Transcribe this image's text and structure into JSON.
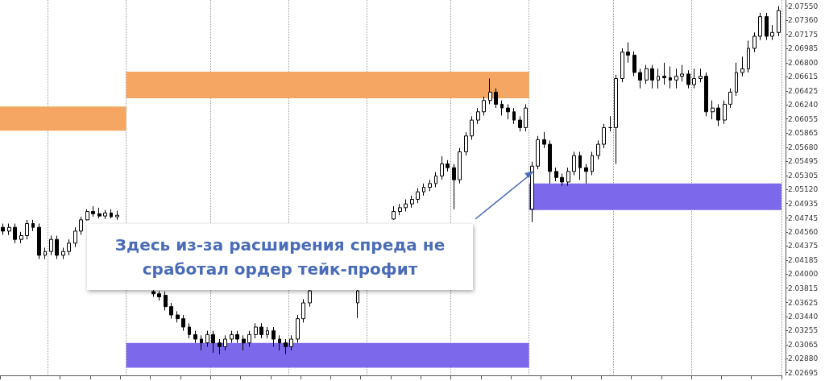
{
  "chart_data": {
    "type": "candlestick",
    "color": "#000000",
    "annotations": [
      "Здесь из-за расширения спреда не сработал ордер тейк-профит"
    ],
    "ylim": [
      2.0266,
      2.0763
    ],
    "yticks": [
      {
        "value": 2.0755,
        "label": "2.07550"
      },
      {
        "value": 2.0736,
        "label": "2.07360"
      },
      {
        "value": 2.07175,
        "label": "2.07175"
      },
      {
        "value": 2.06985,
        "label": "2.06985"
      },
      {
        "value": 2.068,
        "label": "2.06800"
      },
      {
        "value": 2.06615,
        "label": "2.06615"
      },
      {
        "value": 2.06425,
        "label": "2.06425"
      },
      {
        "value": 2.0624,
        "label": "2.06240"
      },
      {
        "value": 2.06055,
        "label": "2.06055"
      },
      {
        "value": 2.05865,
        "label": "2.05865"
      },
      {
        "value": 2.0568,
        "label": "2.05680"
      },
      {
        "value": 2.05495,
        "label": "2.05495"
      },
      {
        "value": 2.05305,
        "label": "2.05305"
      },
      {
        "value": 2.0512,
        "label": "2.05120"
      },
      {
        "value": 2.04935,
        "label": "2.04935"
      },
      {
        "value": 2.04745,
        "label": "2.04745"
      },
      {
        "value": 2.0456,
        "label": "2.04560"
      },
      {
        "value": 2.04375,
        "label": "2.04375"
      },
      {
        "value": 2.04185,
        "label": "2.04185"
      },
      {
        "value": 2.04,
        "label": "2.04000"
      },
      {
        "value": 2.03815,
        "label": "2.03815"
      },
      {
        "value": 2.03625,
        "label": "2.03625"
      },
      {
        "value": 2.0344,
        "label": "2.03440"
      },
      {
        "value": 2.03255,
        "label": "2.03255"
      },
      {
        "value": 2.03065,
        "label": "2.03065"
      },
      {
        "value": 2.0288,
        "label": "2.02880"
      },
      {
        "value": 2.02695,
        "label": "2.02695"
      }
    ],
    "bands": [
      {
        "axis": "y",
        "from": 2.059,
        "to": 2.0622,
        "color": "#f4a662"
      },
      {
        "axis": "y",
        "from": 2.0633,
        "to": 2.0668,
        "color": "#f4a662"
      },
      {
        "axis": "y",
        "from": 2.0276,
        "to": 2.0309,
        "color": "#7b68ea"
      },
      {
        "axis": "y",
        "from": 2.0485,
        "to": 2.052,
        "color": "#7b68ea"
      }
    ],
    "categories": [
      null,
      null,
      null,
      null,
      null,
      null,
      null,
      null,
      null,
      null,
      null,
      null,
      null,
      null,
      null,
      null,
      null,
      null,
      null,
      null,
      null,
      null,
      null,
      null,
      null,
      null,
      null,
      null,
      null,
      null,
      null,
      null,
      null,
      null,
      null,
      null,
      null,
      null,
      null,
      null,
      null,
      null,
      null,
      null,
      null,
      null,
      null,
      null,
      null,
      null,
      null,
      null,
      null,
      null,
      null,
      null,
      null,
      null,
      null,
      null,
      null,
      null,
      null,
      null,
      null,
      null,
      null,
      null,
      null,
      null,
      null,
      null,
      null,
      null,
      null,
      null,
      null,
      null,
      null,
      null,
      null,
      null,
      null,
      null,
      null,
      null,
      null,
      null,
      null,
      null,
      null,
      null,
      null,
      null,
      null,
      null,
      null,
      null,
      null,
      null,
      null,
      null,
      null,
      null,
      null,
      null,
      null,
      null,
      null,
      null,
      null,
      null,
      null,
      null,
      null,
      null,
      null,
      null,
      null,
      null,
      null,
      null,
      null,
      null,
      null,
      null,
      null,
      null,
      null,
      null
    ],
    "ohlc": [
      [
        2.0462,
        2.0467,
        2.0452,
        2.0457
      ],
      [
        2.0457,
        2.0467,
        2.0452,
        2.0462
      ],
      [
        2.0462,
        2.0467,
        2.0441,
        2.0446
      ],
      [
        2.0446,
        2.0456,
        2.0441,
        2.0451
      ],
      [
        2.0451,
        2.0472,
        2.0446,
        2.0467
      ],
      [
        2.0467,
        2.0472,
        2.0457,
        2.0462
      ],
      [
        2.0462,
        2.0467,
        2.042,
        2.0425
      ],
      [
        2.0425,
        2.0435,
        2.042,
        2.043
      ],
      [
        2.043,
        2.0451,
        2.0425,
        2.0446
      ],
      [
        2.0446,
        2.0451,
        2.042,
        2.0425
      ],
      [
        2.0425,
        2.0435,
        2.042,
        2.043
      ],
      [
        2.043,
        2.0446,
        2.0425,
        2.0441
      ],
      [
        2.0441,
        2.0462,
        2.0436,
        2.0457
      ],
      [
        2.0457,
        2.0476,
        2.0452,
        2.0472
      ],
      [
        2.0472,
        2.0486,
        2.0471,
        2.0483
      ],
      [
        2.0483,
        2.049,
        2.0476,
        2.048
      ],
      [
        2.048,
        2.0488,
        2.0474,
        2.0477
      ],
      [
        2.0477,
        2.0485,
        2.0473,
        2.0481
      ],
      [
        2.0481,
        2.0486,
        2.0474,
        2.0476
      ],
      [
        2.0476,
        2.0484,
        2.0472,
        2.0478
      ],
      null,
      null,
      null,
      null,
      null,
      [
        2.0377,
        2.0379,
        2.037,
        2.0374
      ],
      [
        2.0374,
        2.0378,
        2.0365,
        2.037
      ],
      [
        2.0372,
        2.0377,
        2.0352,
        2.0357
      ],
      [
        2.0357,
        2.0362,
        2.0341,
        2.0346
      ],
      [
        2.0346,
        2.0351,
        2.0336,
        2.0341
      ],
      [
        2.0341,
        2.0346,
        2.0325,
        2.033
      ],
      [
        2.033,
        2.0335,
        2.0315,
        2.032
      ],
      [
        2.032,
        2.0325,
        2.0309,
        2.0314
      ],
      [
        2.0314,
        2.0319,
        2.0299,
        2.0309
      ],
      [
        2.0309,
        2.0325,
        2.0304,
        2.032
      ],
      [
        2.032,
        2.0325,
        2.0296,
        2.0309
      ],
      [
        2.0309,
        2.0314,
        2.0294,
        2.0304
      ],
      [
        2.0304,
        2.0319,
        2.0299,
        2.0314
      ],
      [
        2.0314,
        2.0325,
        2.0309,
        2.032
      ],
      [
        2.032,
        2.0325,
        2.0309,
        2.0314
      ],
      [
        2.0314,
        2.0319,
        2.0299,
        2.0309
      ],
      [
        2.0309,
        2.0325,
        2.0304,
        2.032
      ],
      [
        2.032,
        2.0335,
        2.0315,
        2.033
      ],
      [
        2.033,
        2.0335,
        2.0315,
        2.032
      ],
      [
        2.032,
        2.033,
        2.0315,
        2.0325
      ],
      [
        2.0325,
        2.033,
        2.0304,
        2.0314
      ],
      [
        2.0314,
        2.0319,
        2.0299,
        2.0309
      ],
      [
        2.0309,
        2.0314,
        2.0294,
        2.0304
      ],
      [
        2.0304,
        2.0319,
        2.0299,
        2.0314
      ],
      [
        2.0314,
        2.0346,
        2.0309,
        2.0341
      ],
      [
        2.0341,
        2.0367,
        2.0336,
        2.0362
      ],
      [
        2.0362,
        2.0381,
        2.0357,
        2.0378
      ],
      null,
      null,
      null,
      null,
      null,
      null,
      null,
      [
        2.0362,
        2.0381,
        2.0342,
        2.0378
      ],
      null,
      null,
      null,
      null,
      null,
      [
        2.0473,
        2.049,
        2.0472,
        2.0483
      ],
      [
        2.0483,
        2.0493,
        2.0478,
        2.0488
      ],
      [
        2.0488,
        2.0499,
        2.0483,
        2.0493
      ],
      [
        2.0493,
        2.0504,
        2.0488,
        2.0499
      ],
      [
        2.0499,
        2.0514,
        2.0494,
        2.0509
      ],
      [
        2.0509,
        2.052,
        2.0504,
        2.0515
      ],
      [
        2.0515,
        2.0525,
        2.051,
        2.052
      ],
      [
        2.052,
        2.0535,
        2.0515,
        2.053
      ],
      [
        2.053,
        2.0556,
        2.0525,
        2.0546
      ],
      [
        2.0546,
        2.0551,
        2.0536,
        2.0541
      ],
      [
        2.0541,
        2.0546,
        2.0486,
        2.0525
      ],
      [
        2.0525,
        2.0567,
        2.052,
        2.0562
      ],
      [
        2.0562,
        2.0588,
        2.0557,
        2.0583
      ],
      [
        2.0583,
        2.0609,
        2.0578,
        2.0604
      ],
      [
        2.0604,
        2.062,
        2.0599,
        2.0615
      ],
      [
        2.0615,
        2.0635,
        2.061,
        2.063
      ],
      [
        2.063,
        2.0659,
        2.0625,
        2.0641
      ],
      [
        2.0641,
        2.0646,
        2.062,
        2.0625
      ],
      [
        2.0625,
        2.063,
        2.061,
        2.062
      ],
      [
        2.062,
        2.0625,
        2.0605,
        2.0615
      ],
      [
        2.0615,
        2.062,
        2.0599,
        2.0604
      ],
      [
        2.0604,
        2.0609,
        2.0589,
        2.0594
      ],
      [
        2.0594,
        2.0625,
        2.0589,
        2.062
      ],
      [
        2.0486,
        2.0549,
        2.0469,
        2.0543
      ],
      [
        2.0543,
        2.0583,
        2.0539,
        2.0578
      ],
      [
        2.0578,
        2.0588,
        2.0567,
        2.0572
      ],
      [
        2.0572,
        2.0577,
        2.052,
        2.0536
      ],
      [
        2.0536,
        2.0541,
        2.0523,
        2.0528
      ],
      [
        2.0528,
        2.0533,
        2.0517,
        2.0522
      ],
      [
        2.0522,
        2.0541,
        2.0517,
        2.0536
      ],
      [
        2.0536,
        2.0562,
        2.0531,
        2.0557
      ],
      [
        2.0557,
        2.0562,
        2.0525,
        2.0541
      ],
      [
        2.0541,
        2.0546,
        2.052,
        2.0536
      ],
      [
        2.0536,
        2.0562,
        2.0531,
        2.0557
      ],
      [
        2.0557,
        2.0577,
        2.0552,
        2.0572
      ],
      [
        2.0572,
        2.0599,
        2.0567,
        2.0594
      ],
      [
        2.0594,
        2.0609,
        2.0589,
        2.0594
      ],
      [
        2.0594,
        2.0664,
        2.0546,
        2.0659
      ],
      [
        2.0659,
        2.0699,
        2.0654,
        2.0694
      ],
      [
        2.0694,
        2.0707,
        2.068,
        2.069
      ],
      [
        2.069,
        2.0695,
        2.0662,
        2.0667
      ],
      [
        2.0667,
        2.0672,
        2.0646,
        2.0657
      ],
      [
        2.0657,
        2.0677,
        2.0652,
        2.0672
      ],
      [
        2.0672,
        2.0677,
        2.0646,
        2.0657
      ],
      [
        2.0657,
        2.0672,
        2.0646,
        2.0662
      ],
      [
        2.0662,
        2.068,
        2.0651,
        2.066
      ],
      [
        2.066,
        2.0675,
        2.0646,
        2.0657
      ],
      [
        2.0657,
        2.0672,
        2.0646,
        2.0662
      ],
      [
        2.0662,
        2.0677,
        2.0655,
        2.0665
      ],
      [
        2.0665,
        2.067,
        2.0646,
        2.0651
      ],
      [
        2.0651,
        2.0672,
        2.0646,
        2.0659
      ],
      [
        2.0659,
        2.0672,
        2.0654,
        2.0662
      ],
      [
        2.0662,
        2.0667,
        2.0609,
        2.0615
      ],
      [
        2.0615,
        2.063,
        2.0605,
        2.062
      ],
      [
        2.062,
        2.0625,
        2.0596,
        2.0604
      ],
      [
        2.0604,
        2.063,
        2.0599,
        2.0625
      ],
      [
        2.0625,
        2.0646,
        2.062,
        2.0641
      ],
      [
        2.0641,
        2.068,
        2.0636,
        2.0667
      ],
      [
        2.0667,
        2.0688,
        2.0662,
        2.0672
      ],
      [
        2.0672,
        2.0709,
        2.0667,
        2.0699
      ],
      [
        2.0699,
        2.072,
        2.0694,
        2.0715
      ],
      [
        2.0715,
        2.0746,
        2.071,
        2.0741
      ],
      [
        2.0741,
        2.0746,
        2.071,
        2.0715
      ],
      [
        2.0715,
        2.073,
        2.071,
        2.072
      ],
      [
        2.072,
        2.0755,
        2.0715,
        2.0749
      ]
    ]
  }
}
